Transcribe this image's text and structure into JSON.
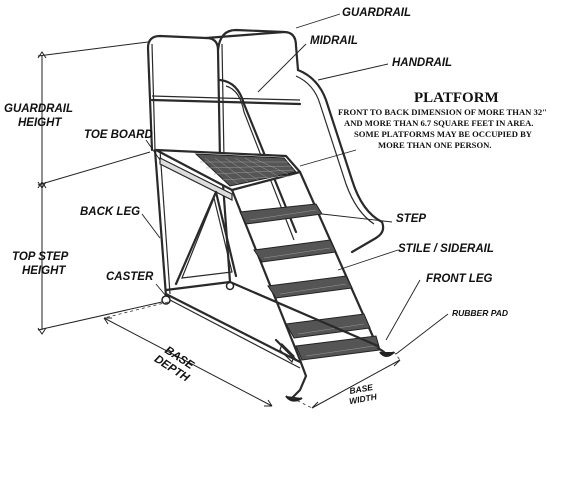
{
  "labels": {
    "guardrail": "GUARDRAIL",
    "midrail": "MIDRAIL",
    "handrail": "HANDRAIL",
    "guardrail_height_1": "GUARDRAIL",
    "guardrail_height_2": "HEIGHT",
    "toe_board": "TOE BOARD",
    "back_leg": "BACK LEG",
    "top_step_height_1": "TOP STEP",
    "top_step_height_2": "HEIGHT",
    "caster": "CASTER",
    "step": "STEP",
    "stile_siderail": "STILE / SIDERAIL",
    "front_leg": "FRONT LEG",
    "rubber_pad": "RUBBER PAD",
    "base_depth_1": "BASE",
    "base_depth_2": "DEPTH",
    "base_width_1": "BASE",
    "base_width_2": "WIDTH"
  },
  "platform": {
    "title": "PLATFORM",
    "line1": "FRONT TO BACK DIMENSION OF MORE THAN 32\"",
    "line2": "AND MORE THAN 6.7 SQUARE FEET IN AREA.",
    "line3": "SOME PLATFORMS MAY BE OCCUPIED BY",
    "line4": "MORE THAN ONE PERSON."
  }
}
